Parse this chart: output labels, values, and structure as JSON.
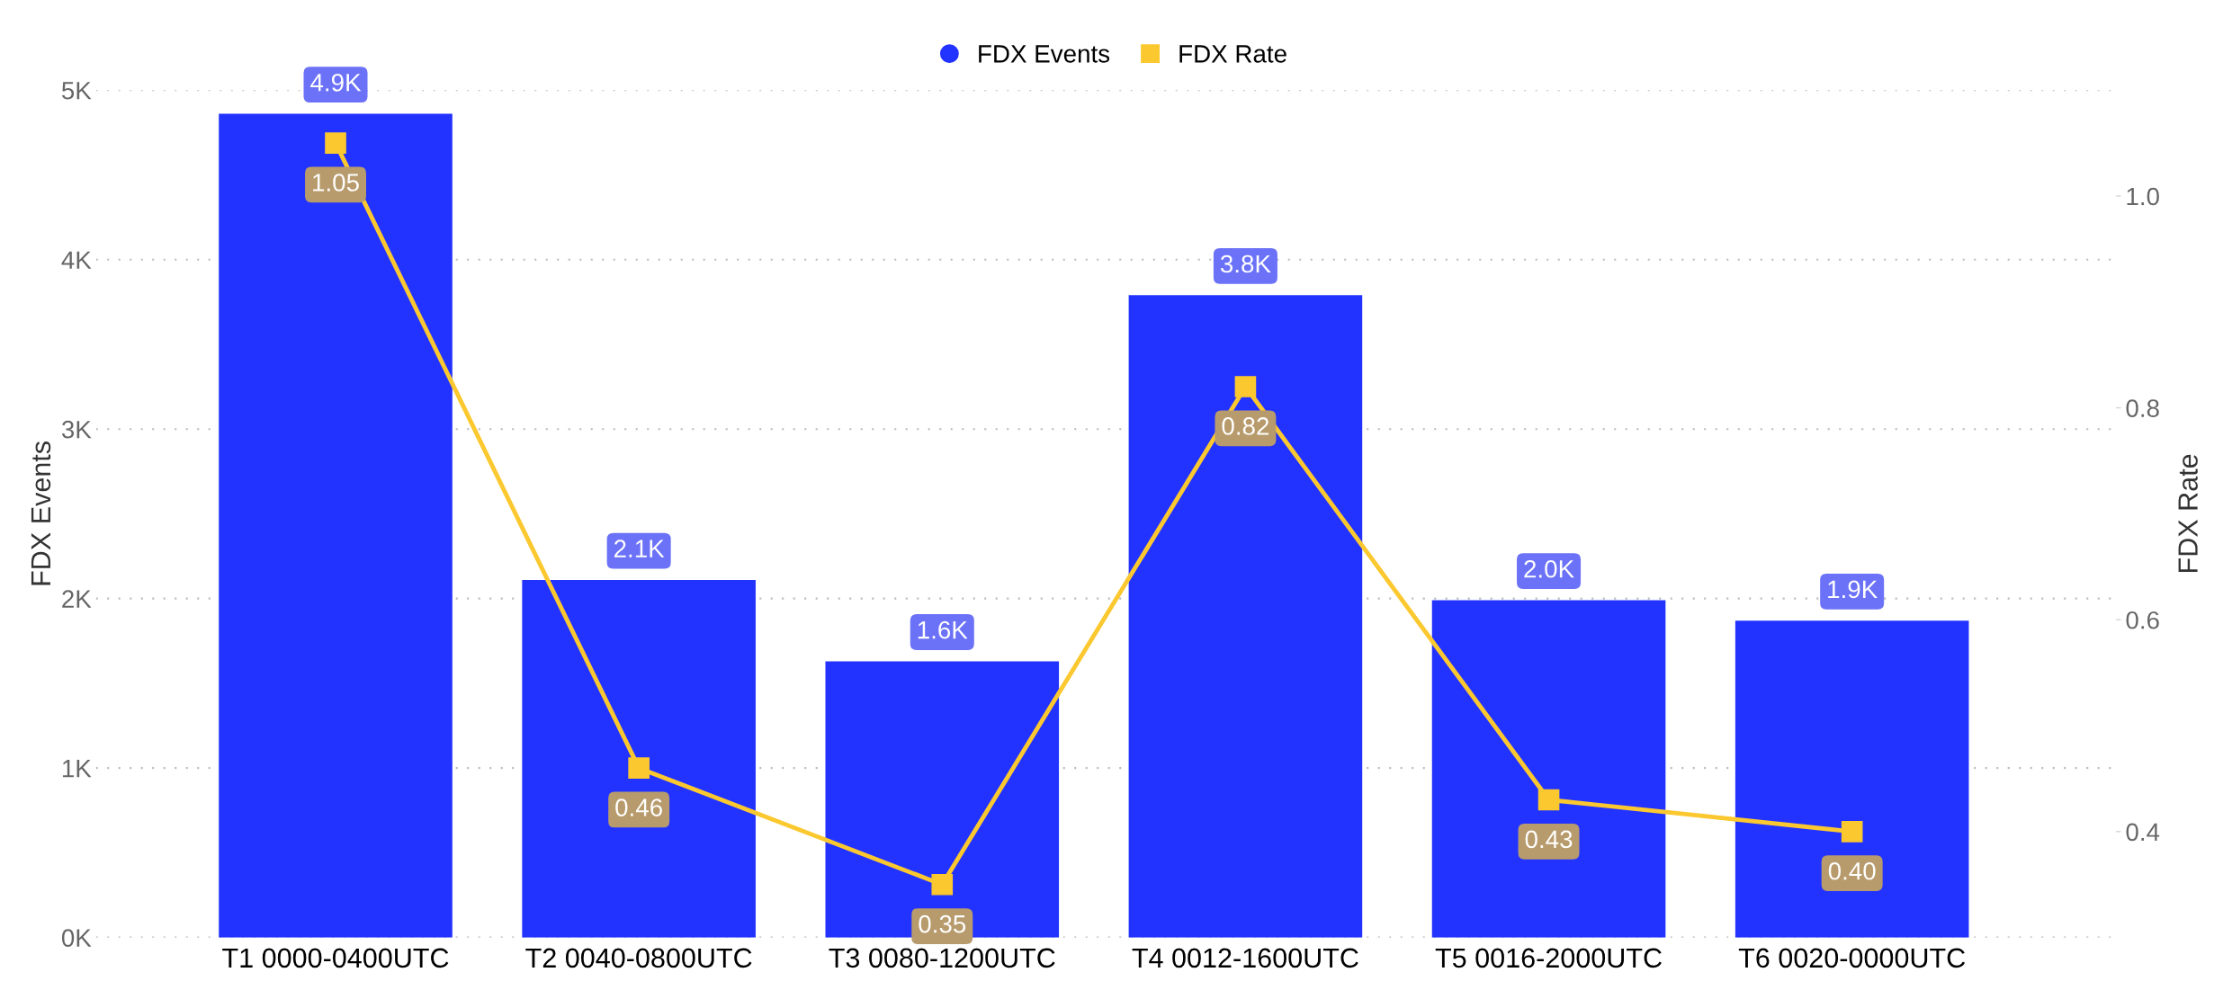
{
  "chart_data": {
    "type": "bar",
    "categories": [
      "T1 0000-0400UTC",
      "T2 0040-0800UTC",
      "T3 0080-1200UTC",
      "T4 0012-1600UTC",
      "T5 0016-2000UTC",
      "T6 0020-0000UTC"
    ],
    "series": [
      {
        "name": "FDX Events",
        "color": "#2233ff",
        "values": [
          4860,
          2110,
          1630,
          3790,
          1990,
          1870
        ],
        "value_labels": [
          "4.9K",
          "2.1K",
          "1.6K",
          "3.8K",
          "2.0K",
          "1.9K"
        ]
      },
      {
        "name": "FDX Rate",
        "type": "line",
        "axis": "y2",
        "color": "#fbc82f",
        "values": [
          1.05,
          0.46,
          0.35,
          0.82,
          0.43,
          0.4
        ],
        "value_labels": [
          "1.05",
          "0.46",
          "0.35",
          "0.82",
          "0.43",
          "0.40"
        ]
      }
    ],
    "ylabel": "FDX Events",
    "y2label": "FDX Rate",
    "ylim": [
      0,
      5000
    ],
    "yticks": [
      {
        "value": 0,
        "label": "0K"
      },
      {
        "value": 1000,
        "label": "1K"
      },
      {
        "value": 2000,
        "label": "2K"
      },
      {
        "value": 3000,
        "label": "3K"
      },
      {
        "value": 4000,
        "label": "4K"
      },
      {
        "value": 5000,
        "label": "5K"
      }
    ],
    "y2lim": [
      0.3,
      1.1
    ],
    "y2ticks": [
      0.4,
      0.6,
      0.8,
      {
        "value": 1.0,
        "label": "1.0"
      }
    ],
    "grid": "y",
    "legend": "top",
    "marker": "square",
    "line_style": "solid"
  }
}
